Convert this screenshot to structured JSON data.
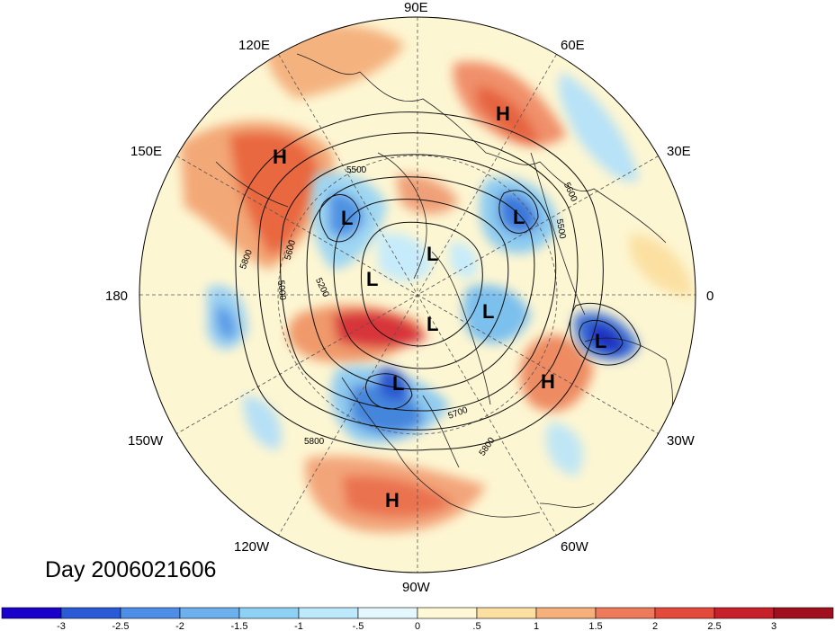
{
  "title_date": "Day 2006021606",
  "longitude_labels": [
    {
      "text": "90E",
      "pos": "top"
    },
    {
      "text": "120E",
      "pos": "upper-left"
    },
    {
      "text": "60E",
      "pos": "upper-right"
    },
    {
      "text": "150E",
      "pos": "left-upper"
    },
    {
      "text": "30E",
      "pos": "right-upper"
    },
    {
      "text": "180",
      "pos": "left"
    },
    {
      "text": "0",
      "pos": "right"
    },
    {
      "text": "150W",
      "pos": "left-lower"
    },
    {
      "text": "30W",
      "pos": "right-lower"
    },
    {
      "text": "120W",
      "pos": "lower-left"
    },
    {
      "text": "60W",
      "pos": "lower-right"
    },
    {
      "text": "90W",
      "pos": "bottom"
    }
  ],
  "pressure_centers": [
    {
      "type": "H",
      "text": "H",
      "region": "East Siberia"
    },
    {
      "type": "H",
      "text": "H",
      "region": "Kazakhstan"
    },
    {
      "type": "L",
      "text": "L",
      "region": "Chukotka"
    },
    {
      "type": "L",
      "text": "L",
      "region": "Ural"
    },
    {
      "type": "L",
      "text": "L",
      "region": "Arctic Ocean"
    },
    {
      "type": "L",
      "text": "L",
      "region": "Beaufort"
    },
    {
      "type": "L",
      "text": "L",
      "region": "Greenland"
    },
    {
      "type": "L",
      "text": "L",
      "region": "Baffin"
    },
    {
      "type": "L",
      "text": "L",
      "region": "Gulf of Alaska"
    },
    {
      "type": "L",
      "text": "L",
      "region": "North Atlantic"
    },
    {
      "type": "H",
      "text": "H",
      "region": "Central Atlantic"
    },
    {
      "type": "H",
      "text": "H",
      "region": "Pacific off Mexico"
    }
  ],
  "contour_labels": [
    "5500",
    "5800",
    "5600",
    "5200",
    "5000",
    "5700",
    "5800",
    "5800",
    "5600",
    "5500"
  ],
  "colorbar": {
    "ticks": [
      "-3",
      "-2.5",
      "-2",
      "-1.5",
      "-1",
      "-.5",
      "0",
      ".5",
      "1",
      "1.5",
      "2",
      "2.5",
      "3"
    ],
    "colors": [
      "#1a00c8",
      "#2b5ad6",
      "#4e8ee6",
      "#6cb0ee",
      "#8fd0f5",
      "#bce9fb",
      "#e4f7fc",
      "#fff8d6",
      "#fbe0a2",
      "#f5b07c",
      "#ed7a5a",
      "#e34a3b",
      "#c8202a",
      "#a00f1e"
    ]
  }
}
